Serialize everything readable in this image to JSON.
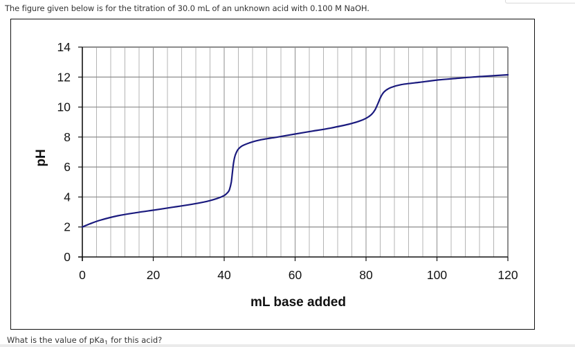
{
  "header": {
    "intro_text": "The figure given below is for the titration of 30.0 mL of an unknown acid with 0.100 M NaOH."
  },
  "question": {
    "prefix": "What is the value of pKa",
    "subscript": "1",
    "suffix": " for this acid?"
  },
  "colors": {
    "curve": "#1a1a7e",
    "grid_minor": "#b4b4b4",
    "grid_major": "#8c8c8c",
    "axis": "#111111"
  },
  "chart_data": {
    "type": "line",
    "title": "",
    "xlabel": "mL base added",
    "ylabel": "pH",
    "xlim": [
      0,
      120
    ],
    "ylim": [
      0,
      14
    ],
    "x_ticks": [
      0,
      20,
      40,
      60,
      80,
      100,
      120
    ],
    "y_ticks": [
      0,
      2,
      4,
      6,
      8,
      10,
      12,
      14
    ],
    "x_tick_labels": [
      "0",
      "20",
      "40",
      "60",
      "80",
      "100",
      "120"
    ],
    "y_tick_labels": [
      "0",
      "2",
      "4",
      "6",
      "8",
      "10",
      "12",
      "14"
    ],
    "x_minor_step": 4,
    "y_minor_step": 2,
    "grid": true,
    "legend": null,
    "series": [
      {
        "name": "pH",
        "x": [
          0,
          2,
          5,
          10,
          15,
          20,
          25,
          30,
          35,
          38,
          40,
          41,
          41.5,
          42,
          42.3,
          42.6,
          43,
          43.5,
          44,
          45,
          47,
          50,
          55,
          60,
          65,
          70,
          75,
          78,
          80,
          81.5,
          82.5,
          83.3,
          84,
          84.7,
          85.5,
          87,
          90,
          95,
          100,
          105,
          110,
          115,
          120
        ],
        "values": [
          2.0,
          2.2,
          2.45,
          2.75,
          2.95,
          3.12,
          3.3,
          3.48,
          3.7,
          3.9,
          4.1,
          4.3,
          4.5,
          5.0,
          5.6,
          6.2,
          6.7,
          7.0,
          7.2,
          7.4,
          7.6,
          7.8,
          8.0,
          8.2,
          8.4,
          8.6,
          8.85,
          9.05,
          9.25,
          9.5,
          9.8,
          10.2,
          10.6,
          10.9,
          11.1,
          11.3,
          11.5,
          11.65,
          11.8,
          11.9,
          12.0,
          12.08,
          12.15
        ]
      }
    ]
  }
}
